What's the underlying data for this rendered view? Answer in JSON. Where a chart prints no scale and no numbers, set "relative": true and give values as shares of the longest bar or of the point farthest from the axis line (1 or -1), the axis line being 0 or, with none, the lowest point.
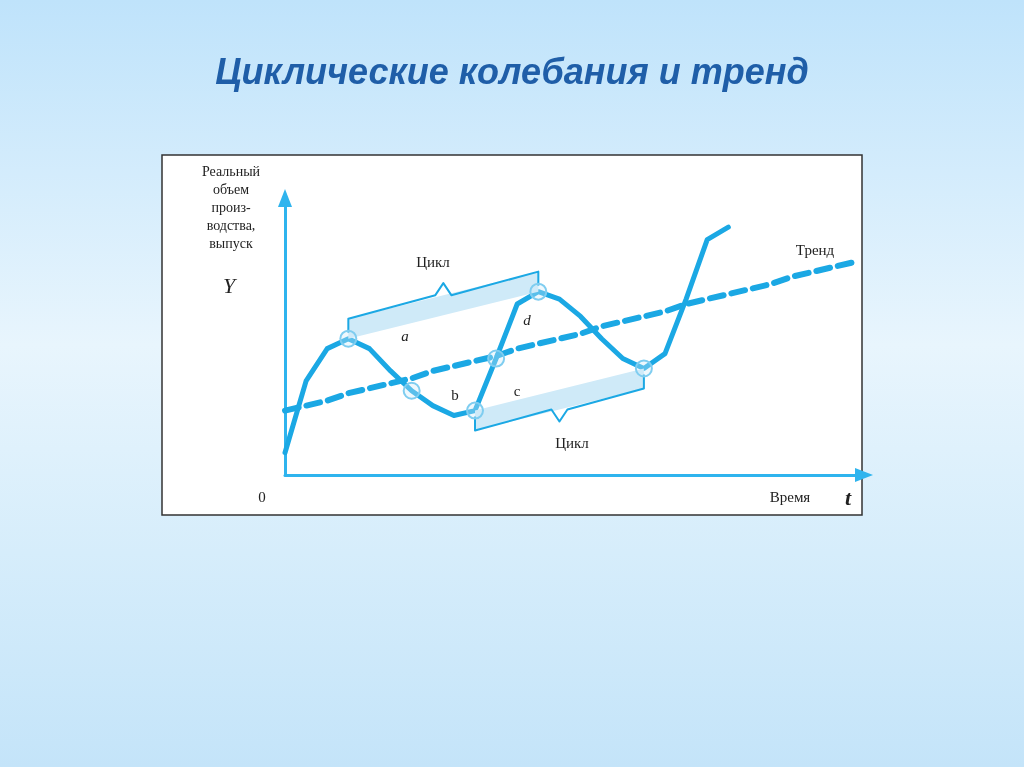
{
  "chart_data": {
    "type": "line",
    "title": "Циклические колебания и тренд",
    "xlabel": "Время",
    "ylabel": "Реальный\nобъем\nпроиз-\nводства,\nвыпуск",
    "relative": true,
    "grid": false,
    "marker": "none",
    "categories": [
      null,
      null,
      null,
      null,
      null,
      null,
      null,
      null,
      null,
      null,
      null,
      null,
      null,
      null,
      null,
      null,
      null,
      null,
      null,
      null,
      null,
      null,
      null,
      null,
      null,
      null,
      null,
      null
    ],
    "series": [
      {
        "color": "#1ba8e4",
        "line_style": "solid",
        "values": [
          0.09,
          0.38,
          0.51,
          0.55,
          0.51,
          0.42,
          0.34,
          0.28,
          0.24,
          0.26,
          0.47,
          0.69,
          0.74,
          0.71,
          0.64,
          0.55,
          0.47,
          0.43,
          0.49,
          0.71,
          0.95,
          1,
          null,
          null,
          null,
          null,
          null,
          null
        ]
      },
      {
        "color": "#1ba8e4",
        "line_style": "dashed",
        "values": [
          0.26,
          0.28,
          0.3,
          0.33,
          0.35,
          0.37,
          0.39,
          0.42,
          0.44,
          0.46,
          0.48,
          0.51,
          0.53,
          0.55,
          0.57,
          0.6,
          0.62,
          0.64,
          0.66,
          0.69,
          0.71,
          0.73,
          0.75,
          0.77,
          0.8,
          0.82,
          0.84,
          0.86
        ]
      }
    ],
    "annotations": [
      "Цикл",
      "Цикл",
      "a",
      "b",
      "c",
      "d",
      "Тренд",
      "Y",
      "0",
      "t"
    ]
  }
}
